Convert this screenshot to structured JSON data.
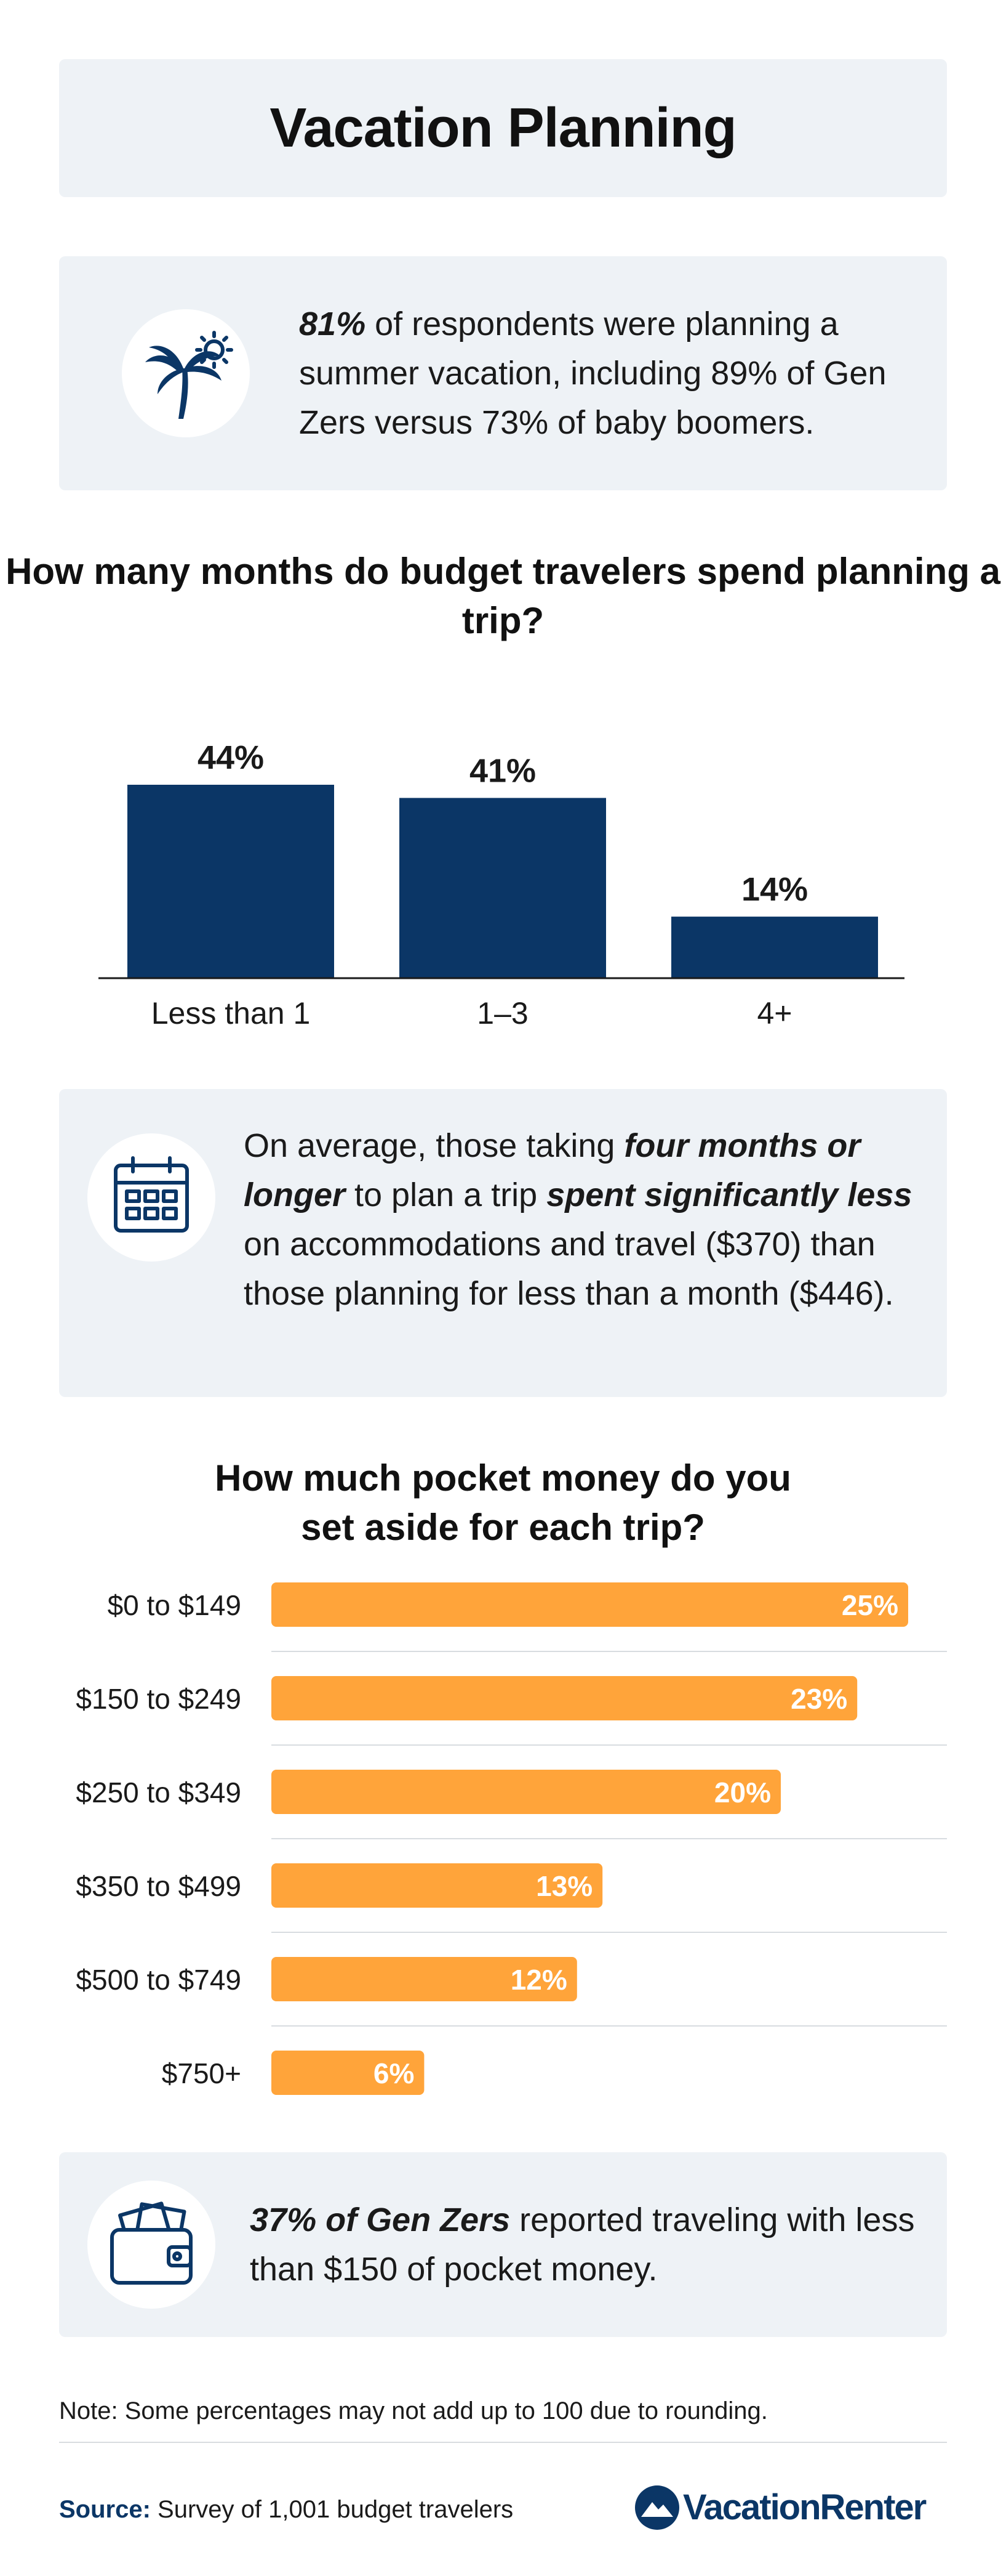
{
  "title": "Vacation Planning",
  "stat_1": {
    "icon": "palm-tree-sun-icon",
    "highlight": "81%",
    "text": " of respondents were planning a summer vacation, including 89% of Gen Zers versus 73% of baby boomers."
  },
  "stat_2": {
    "icon": "calendar-icon",
    "parts": [
      "On average, those taking ",
      "four months or longer",
      " to plan a trip ",
      "spent significantly less",
      " on accommodations and travel ($370) than those planning for less than a month ($446)."
    ]
  },
  "stat_3": {
    "icon": "wallet-cash-icon",
    "highlight": "37% of Gen Zers",
    "text": " reported traveling with less than $150 of pocket money."
  },
  "colors": {
    "navy": "#0b3666",
    "orange": "#ffa43a",
    "panel": "#eef2f6"
  },
  "chart_data": [
    {
      "type": "bar",
      "title": "How many months do budget travelers spend planning a trip?",
      "categories": [
        "Less than 1",
        "1–3",
        "4+"
      ],
      "values": [
        44,
        41,
        14
      ],
      "value_labels": [
        "44%",
        "41%",
        "14%"
      ],
      "ylim": [
        0,
        44
      ],
      "color": "#0b3666"
    },
    {
      "type": "bar",
      "orientation": "horizontal",
      "title": "How much pocket money do you set aside for each trip?",
      "categories": [
        "$0 to $149",
        "$150 to $249",
        "$250 to $349",
        "$350 to $499",
        "$500 to $749",
        "$750+"
      ],
      "values": [
        25,
        23,
        20,
        13,
        12,
        6
      ],
      "value_labels": [
        "25%",
        "23%",
        "20%",
        "13%",
        "12%",
        "6%"
      ],
      "xlim": [
        0,
        25
      ],
      "color": "#ffa43a"
    }
  ],
  "footer": {
    "note": "Note: Some percentages may not add up to 100 due to rounding.",
    "source_label": "Source:",
    "source_text": " Survey of 1,001 budget travelers",
    "logo_text": "VacationRenter"
  }
}
